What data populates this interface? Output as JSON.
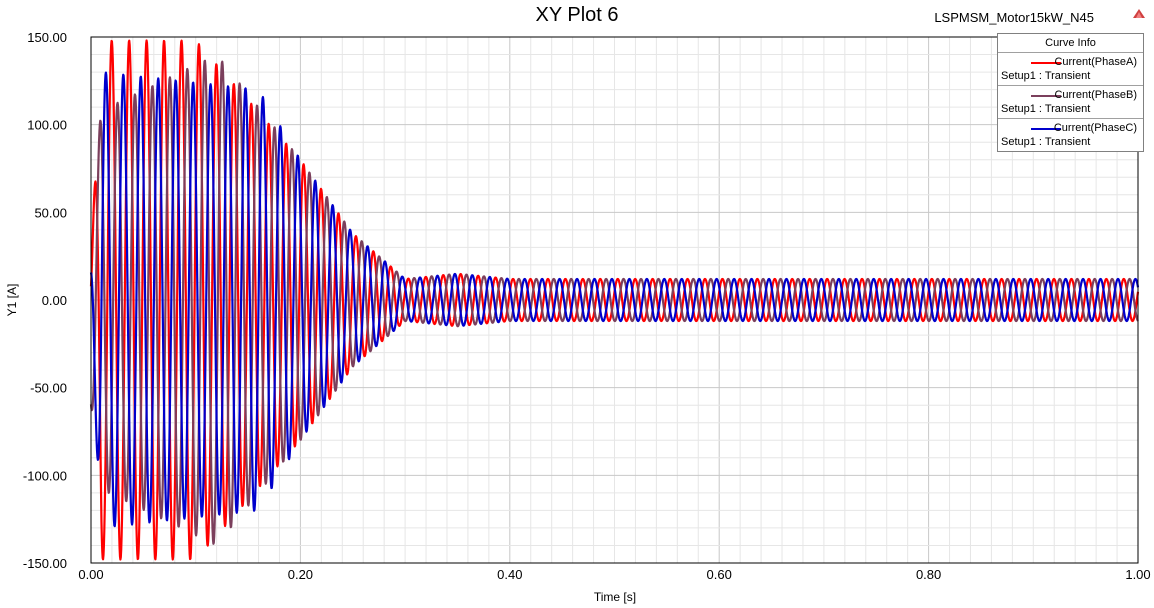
{
  "header": {
    "title": "XY Plot 6",
    "project": "LSPMSM_Motor15kW_N45"
  },
  "legend": {
    "title": "Curve Info",
    "items": [
      {
        "name": "Current(PhaseA)",
        "setup": "Setup1 : Transient",
        "color": "#ff0000"
      },
      {
        "name": "Current(PhaseB)",
        "setup": "Setup1 : Transient",
        "color": "#7b3f5c"
      },
      {
        "name": "Current(PhaseC)",
        "setup": "Setup1 : Transient",
        "color": "#0000cc"
      }
    ]
  },
  "chart_data": {
    "type": "line",
    "title": "XY Plot 6",
    "xlabel": "Time [s]",
    "ylabel": "Y1 [A]",
    "xlim": [
      0,
      1.0
    ],
    "ylim": [
      -150,
      150
    ],
    "xticks": [
      "0.00",
      "0.20",
      "0.40",
      "0.60",
      "0.80",
      "1.00"
    ],
    "yticks": [
      "150.00",
      "100.00",
      "50.00",
      "0.00",
      "-50.00",
      "-100.00",
      "-150.00"
    ],
    "grid": true,
    "legend_position": "top-right",
    "line_frequency_hz": 50,
    "phase_shift_deg": [
      0,
      -120,
      120
    ],
    "series": [
      {
        "name": "Current(PhaseA)",
        "color": "#ff0000",
        "peak_envelope": {
          "t": [
            0.0,
            0.01,
            0.1,
            0.2,
            0.25,
            0.3,
            0.35,
            0.4,
            1.0
          ],
          "amp": [
            20,
            148,
            148,
            80,
            38,
            12,
            15,
            12,
            12
          ]
        }
      },
      {
        "name": "Current(PhaseB)",
        "color": "#7b3f5c",
        "peak_envelope": {
          "t": [
            0.0,
            0.01,
            0.12,
            0.2,
            0.25,
            0.3,
            0.35,
            0.4,
            1.0
          ],
          "amp": [
            60,
            108,
            140,
            80,
            38,
            12,
            15,
            12,
            12
          ]
        }
      },
      {
        "name": "Current(PhaseC)",
        "color": "#0000cc",
        "peak_envelope": {
          "t": [
            0.0,
            0.01,
            0.16,
            0.2,
            0.25,
            0.3,
            0.35,
            0.4,
            1.0
          ],
          "amp": [
            26,
            130,
            120,
            80,
            38,
            12,
            15,
            12,
            12
          ]
        }
      }
    ]
  }
}
